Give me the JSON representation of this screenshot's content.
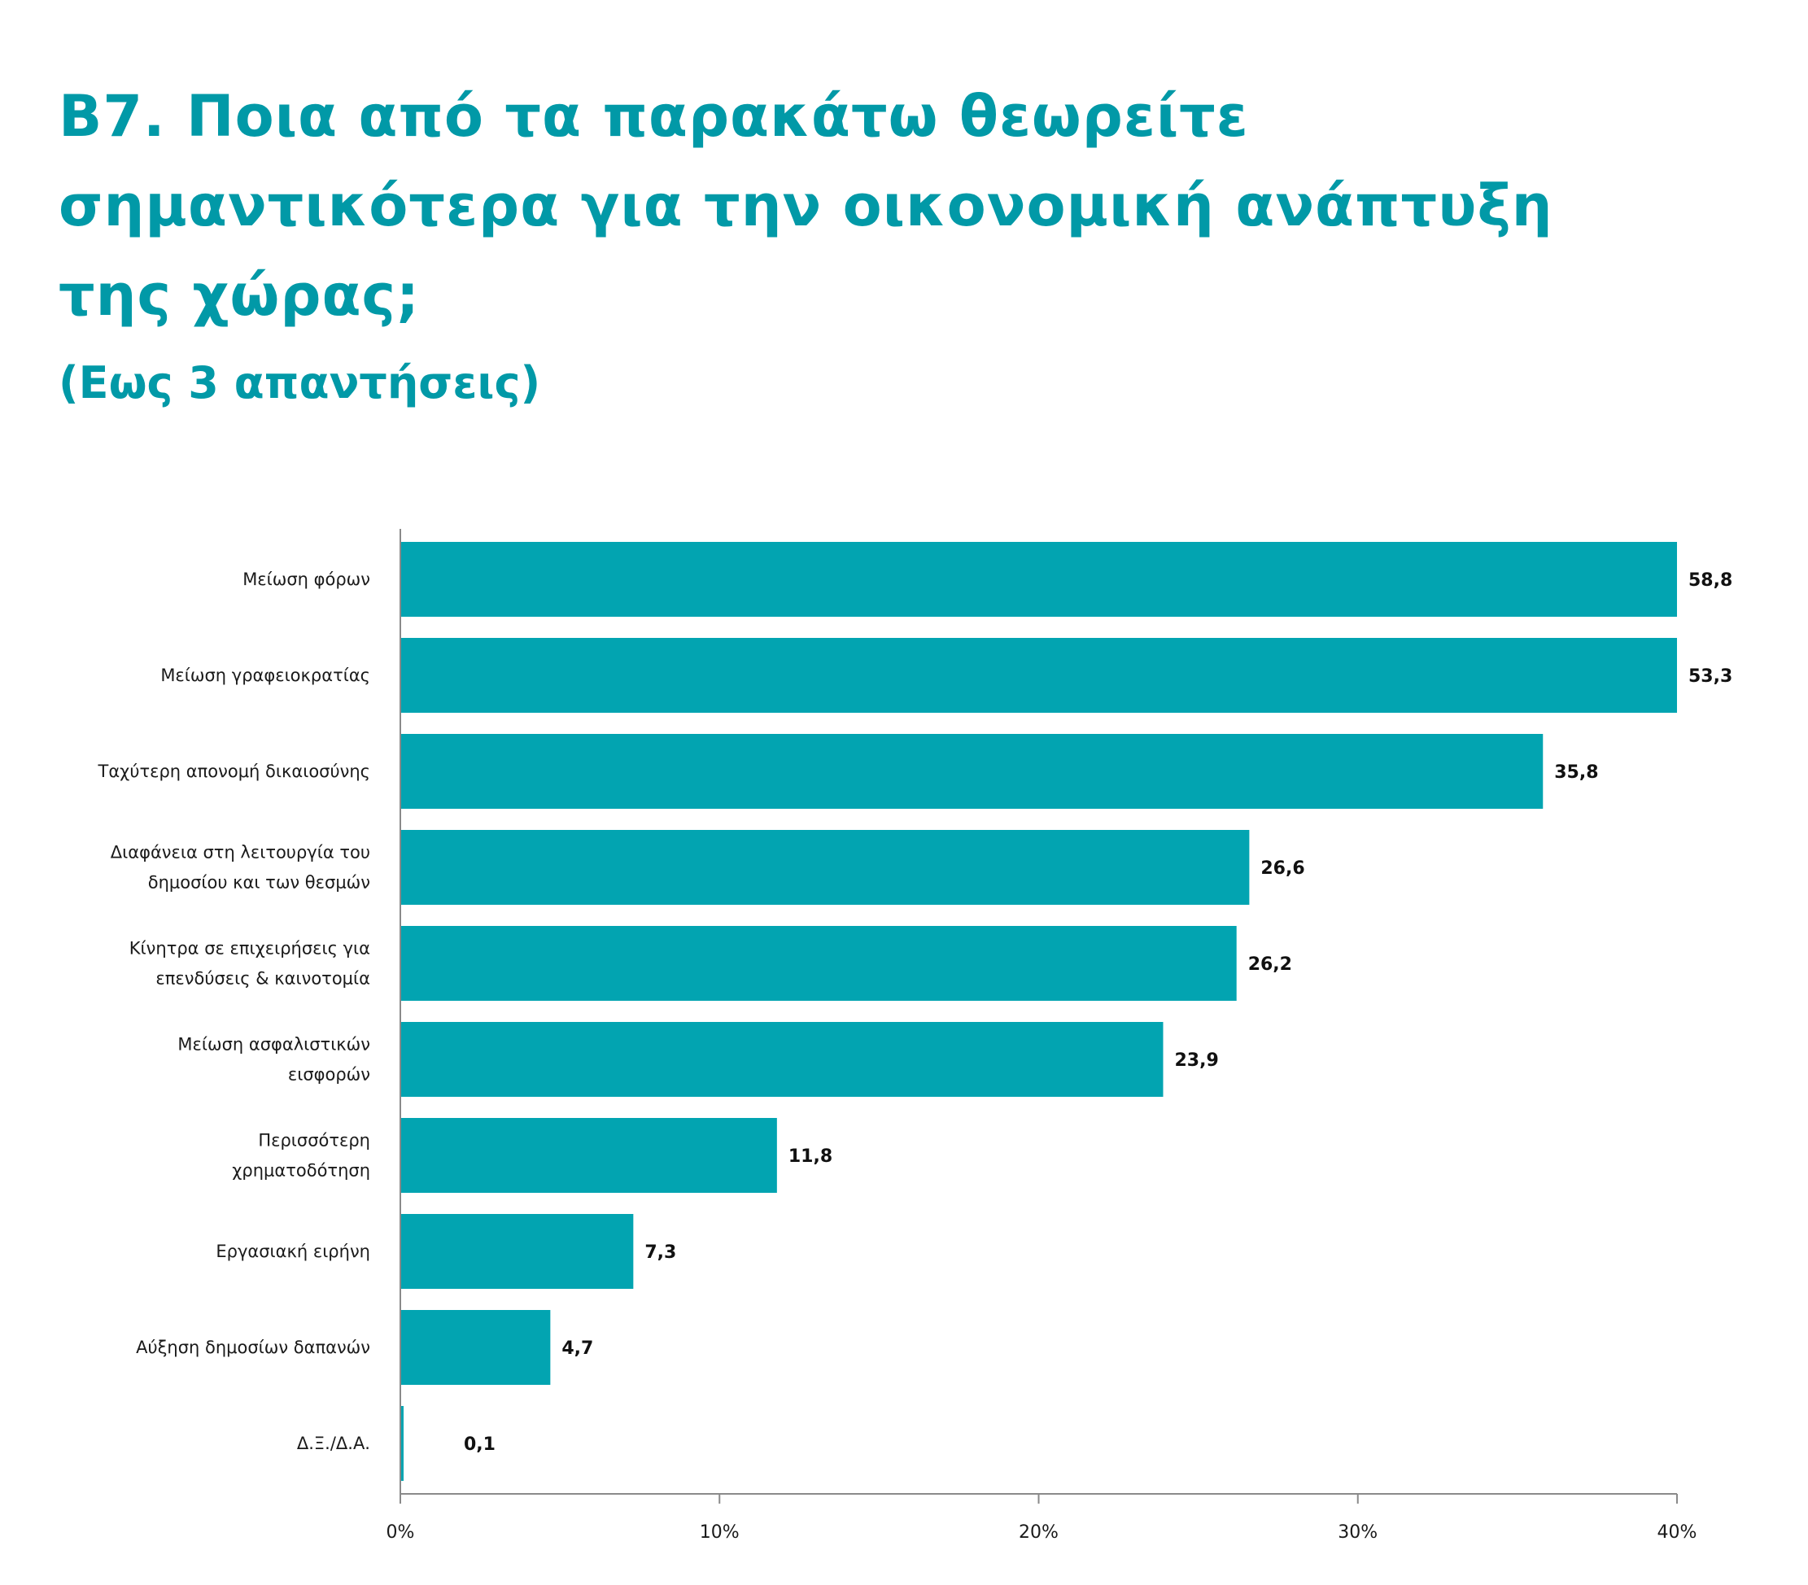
{
  "chart_data": {
    "type": "bar",
    "orientation": "horizontal",
    "title": "Β7. Ποια από τα παρακάτω θεωρείτε σημαντικότερα για την οικονομική ανάπτυξη της χώρας;",
    "subtitle": "(Εως 3 απαντήσεις)",
    "categories": [
      [
        "Μείωση φόρων"
      ],
      [
        "Μείωση γραφειοκρατίας"
      ],
      [
        "Ταχύτερη απονομή δικαιοσύνης"
      ],
      [
        "Διαφάνεια στη λειτουργία του",
        "δημοσίου και των θεσμών"
      ],
      [
        "Κίνητρα σε επιχειρήσεις για",
        "επενδύσεις & καινοτομία"
      ],
      [
        "Μείωση ασφαλιστικών",
        "εισφορών"
      ],
      [
        "Περισσότερη",
        "χρηματοδότηση"
      ],
      [
        "Εργασιακή ειρήνη"
      ],
      [
        "Αύξηση δημοσίων δαπανών"
      ],
      [
        "Δ.Ξ./Δ.Α."
      ]
    ],
    "values": [
      58.8,
      53.3,
      35.8,
      26.6,
      26.2,
      23.9,
      11.8,
      7.3,
      4.7,
      0.1
    ],
    "value_labels": [
      "58,8",
      "53,3",
      "35,8",
      "26,6",
      "26,2",
      "23,9",
      "11,8",
      "7,3",
      "4,7",
      "0,1"
    ],
    "xlim": [
      0,
      40
    ],
    "xticks": [
      0,
      10,
      20,
      30,
      40
    ],
    "xtick_labels": [
      "0%",
      "10%",
      "20%",
      "30%",
      "40%"
    ],
    "xlabel": "",
    "ylabel": "",
    "grid": false,
    "bar_color": "#02a4b1",
    "title_color": "#0199a7"
  }
}
